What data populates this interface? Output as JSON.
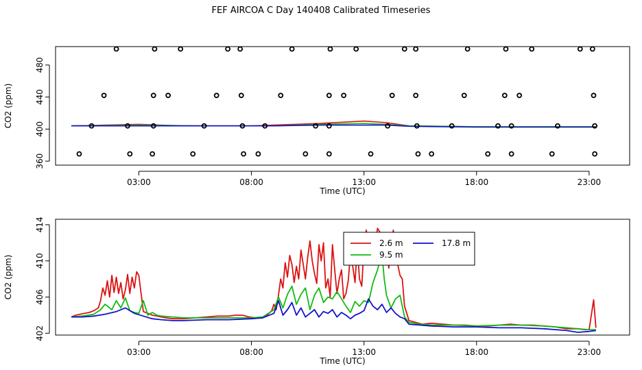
{
  "title": "FEF AIRCOA C  Day 140408  Calibrated Timeseries",
  "colors": {
    "h2_6": "#dd1111",
    "h9_5": "#11bb11",
    "h17_8": "#1111cc",
    "marker": "#000000"
  },
  "chart_data": [
    {
      "type": "scatter",
      "xlabel": "Time (UTC)",
      "ylabel": "CO2 (ppm)",
      "x_unit": "hours UTC",
      "xlim": [
        -0.7,
        24.8
      ],
      "ylim": [
        355,
        503
      ],
      "xticks": [
        {
          "label": "03:00",
          "value": 3
        },
        {
          "label": "08:00",
          "value": 8
        },
        {
          "label": "13:00",
          "value": 13
        },
        {
          "label": "18:00",
          "value": 18
        },
        {
          "label": "23:00",
          "value": 23
        }
      ],
      "yticks": [
        360,
        400,
        440,
        480
      ],
      "points": [
        {
          "x": 2.0,
          "y": 500
        },
        {
          "x": 3.7,
          "y": 500
        },
        {
          "x": 4.85,
          "y": 500
        },
        {
          "x": 6.95,
          "y": 500
        },
        {
          "x": 7.5,
          "y": 500
        },
        {
          "x": 9.8,
          "y": 500
        },
        {
          "x": 11.5,
          "y": 500
        },
        {
          "x": 12.65,
          "y": 500
        },
        {
          "x": 14.8,
          "y": 500
        },
        {
          "x": 15.3,
          "y": 500
        },
        {
          "x": 17.6,
          "y": 500
        },
        {
          "x": 19.3,
          "y": 500
        },
        {
          "x": 20.45,
          "y": 500
        },
        {
          "x": 22.6,
          "y": 500
        },
        {
          "x": 23.15,
          "y": 500
        },
        {
          "x": 1.45,
          "y": 442
        },
        {
          "x": 3.65,
          "y": 442
        },
        {
          "x": 4.3,
          "y": 442
        },
        {
          "x": 6.45,
          "y": 442
        },
        {
          "x": 7.55,
          "y": 442
        },
        {
          "x": 9.3,
          "y": 442
        },
        {
          "x": 11.45,
          "y": 442
        },
        {
          "x": 12.1,
          "y": 442
        },
        {
          "x": 14.25,
          "y": 442
        },
        {
          "x": 15.3,
          "y": 442
        },
        {
          "x": 17.45,
          "y": 442
        },
        {
          "x": 19.25,
          "y": 442
        },
        {
          "x": 19.9,
          "y": 442
        },
        {
          "x": 23.2,
          "y": 442
        },
        {
          "x": 0.9,
          "y": 404
        },
        {
          "x": 2.5,
          "y": 404
        },
        {
          "x": 3.65,
          "y": 404
        },
        {
          "x": 5.9,
          "y": 404
        },
        {
          "x": 7.6,
          "y": 404
        },
        {
          "x": 8.6,
          "y": 404
        },
        {
          "x": 10.85,
          "y": 404
        },
        {
          "x": 11.45,
          "y": 404
        },
        {
          "x": 14.05,
          "y": 404
        },
        {
          "x": 15.35,
          "y": 404
        },
        {
          "x": 16.9,
          "y": 404
        },
        {
          "x": 18.95,
          "y": 404
        },
        {
          "x": 19.55,
          "y": 404
        },
        {
          "x": 21.6,
          "y": 404
        },
        {
          "x": 23.25,
          "y": 404
        },
        {
          "x": 0.35,
          "y": 369
        },
        {
          "x": 2.6,
          "y": 369
        },
        {
          "x": 3.6,
          "y": 369
        },
        {
          "x": 5.4,
          "y": 369
        },
        {
          "x": 7.65,
          "y": 369
        },
        {
          "x": 8.3,
          "y": 369
        },
        {
          "x": 10.4,
          "y": 369
        },
        {
          "x": 11.45,
          "y": 369
        },
        {
          "x": 13.3,
          "y": 369
        },
        {
          "x": 15.4,
          "y": 369
        },
        {
          "x": 16.0,
          "y": 369
        },
        {
          "x": 18.5,
          "y": 369
        },
        {
          "x": 19.55,
          "y": 369
        },
        {
          "x": 21.35,
          "y": 369
        },
        {
          "x": 23.25,
          "y": 369
        }
      ],
      "series": [
        {
          "color": "#dd1111",
          "x": [
            0,
            3,
            5,
            8,
            9,
            11,
            13,
            14,
            15,
            18,
            20,
            22,
            23.3
          ],
          "y": [
            404,
            406,
            404,
            404,
            405,
            407,
            410,
            408,
            404,
            403,
            403,
            403,
            403
          ]
        },
        {
          "color": "#11bb11",
          "x": [
            0,
            3,
            6,
            9,
            11,
            13,
            14,
            15,
            18,
            23.3
          ],
          "y": [
            404,
            405,
            404,
            404,
            406,
            407,
            406,
            404,
            403,
            403
          ]
        },
        {
          "color": "#1111cc",
          "x": [
            0,
            3,
            6,
            9,
            11,
            13,
            14,
            15,
            18,
            23.3
          ],
          "y": [
            404,
            404,
            404,
            404,
            405,
            405,
            405,
            403.5,
            402.5,
            402.5
          ]
        }
      ]
    },
    {
      "type": "line",
      "xlabel": "Time (UTC)",
      "ylabel": "CO2 (ppm)",
      "x_unit": "hours UTC",
      "xlim": [
        -0.7,
        24.8
      ],
      "ylim": [
        401.8,
        414.6
      ],
      "xticks": [
        {
          "label": "03:00",
          "value": 3
        },
        {
          "label": "08:00",
          "value": 8
        },
        {
          "label": "13:00",
          "value": 13
        },
        {
          "label": "18:00",
          "value": 18
        },
        {
          "label": "23:00",
          "value": 23
        }
      ],
      "yticks": [
        402,
        406,
        410,
        414
      ],
      "legend": "top-center",
      "series": [
        {
          "name": "2.6 m",
          "color": "#dd1111",
          "x": [
            0.0,
            0.2,
            0.4,
            0.6,
            0.8,
            1.0,
            1.2,
            1.3,
            1.4,
            1.5,
            1.6,
            1.7,
            1.8,
            1.9,
            2.0,
            2.1,
            2.2,
            2.3,
            2.4,
            2.5,
            2.6,
            2.7,
            2.8,
            2.9,
            3.0,
            3.2,
            3.4,
            3.6,
            3.8,
            4.0,
            4.2,
            4.5,
            4.8,
            5.0,
            5.5,
            6.0,
            6.5,
            7.0,
            7.3,
            7.6,
            7.9,
            8.2,
            8.5,
            8.7,
            8.9,
            9.0,
            9.1,
            9.2,
            9.3,
            9.4,
            9.5,
            9.6,
            9.7,
            9.8,
            9.9,
            10.0,
            10.1,
            10.2,
            10.3,
            10.4,
            10.5,
            10.6,
            10.7,
            10.8,
            10.9,
            11.0,
            11.1,
            11.2,
            11.3,
            11.4,
            11.5,
            11.6,
            11.7,
            11.8,
            11.9,
            12.0,
            12.1,
            12.2,
            12.3,
            12.4,
            12.5,
            12.6,
            12.7,
            12.8,
            12.9,
            13.0,
            13.1,
            13.2,
            13.3,
            13.4,
            13.5,
            13.6,
            13.7,
            13.8,
            13.9,
            14.0,
            14.1,
            14.2,
            14.3,
            14.4,
            14.5,
            14.6,
            14.7,
            14.8,
            15.0,
            15.3,
            15.6,
            16.0,
            16.5,
            17.0,
            17.5,
            18.0,
            18.5,
            19.0,
            19.5,
            20.0,
            20.5,
            21.0,
            21.5,
            22.0,
            22.5,
            22.8,
            23.0,
            23.2,
            23.3
          ],
          "y": [
            403.8,
            404.0,
            404.1,
            404.2,
            404.3,
            404.5,
            404.8,
            405.6,
            407.0,
            406.2,
            407.8,
            406.0,
            408.4,
            406.5,
            408.2,
            406.4,
            407.6,
            405.8,
            406.8,
            408.5,
            406.4,
            408.2,
            407.0,
            408.8,
            408.4,
            404.4,
            404.2,
            404.0,
            403.9,
            403.8,
            403.7,
            403.6,
            403.6,
            403.6,
            403.7,
            403.8,
            403.9,
            403.9,
            404.0,
            404.0,
            403.8,
            403.7,
            403.7,
            404.0,
            404.5,
            405.2,
            404.6,
            406.2,
            408.0,
            407.0,
            409.8,
            408.2,
            410.6,
            409.6,
            407.6,
            409.4,
            408.0,
            411.2,
            409.6,
            408.0,
            410.4,
            412.2,
            410.0,
            408.6,
            407.5,
            411.8,
            410.0,
            412.0,
            407.0,
            408.0,
            406.0,
            411.8,
            409.0,
            406.4,
            408.0,
            409.0,
            405.8,
            406.4,
            407.8,
            410.8,
            409.4,
            407.6,
            411.6,
            408.0,
            407.2,
            411.4,
            413.4,
            411.6,
            413.0,
            412.8,
            411.8,
            413.6,
            413.2,
            412.2,
            410.8,
            412.4,
            409.2,
            411.2,
            413.4,
            411.4,
            409.6,
            408.4,
            408.0,
            405.0,
            403.4,
            403.2,
            403.0,
            403.1,
            403.0,
            402.9,
            402.9,
            402.8,
            402.8,
            402.9,
            403.0,
            402.9,
            402.9,
            402.8,
            402.7,
            402.5,
            402.5,
            402.4,
            402.4,
            405.7,
            402.6
          ]
        },
        {
          "name": "9.5 m",
          "color": "#11bb11",
          "x": [
            0.0,
            0.5,
            1.0,
            1.3,
            1.5,
            1.8,
            2.0,
            2.2,
            2.4,
            2.6,
            2.8,
            3.0,
            3.2,
            3.4,
            3.6,
            3.8,
            4.0,
            4.5,
            5.0,
            6.0,
            7.0,
            8.0,
            8.5,
            9.0,
            9.2,
            9.4,
            9.6,
            9.8,
            10.0,
            10.2,
            10.4,
            10.6,
            10.8,
            11.0,
            11.2,
            11.4,
            11.6,
            11.8,
            12.0,
            12.2,
            12.4,
            12.6,
            12.8,
            13.0,
            13.2,
            13.4,
            13.6,
            13.8,
            13.9,
            14.0,
            14.2,
            14.4,
            14.6,
            14.8,
            15.0,
            15.5,
            16.0,
            17.0,
            18.0,
            19.0,
            20.0,
            21.0,
            22.0,
            23.0,
            23.3
          ],
          "y": [
            403.8,
            403.9,
            404.1,
            404.6,
            405.2,
            404.6,
            405.6,
            404.8,
            405.9,
            404.5,
            404.3,
            404.2,
            405.6,
            404.0,
            404.3,
            404.0,
            403.9,
            403.8,
            403.7,
            403.7,
            403.7,
            403.7,
            403.8,
            404.6,
            406.0,
            404.8,
            406.3,
            407.2,
            405.2,
            406.3,
            407.0,
            404.6,
            406.2,
            407.0,
            405.4,
            406.0,
            405.8,
            406.6,
            405.8,
            405.0,
            404.3,
            405.5,
            405.0,
            405.6,
            405.4,
            407.6,
            409.0,
            410.8,
            408.0,
            406.2,
            404.8,
            405.8,
            406.2,
            403.8,
            403.2,
            403.0,
            402.9,
            402.9,
            402.8,
            402.9,
            402.9,
            402.8,
            402.6,
            402.4,
            402.4
          ]
        },
        {
          "name": "17.8 m",
          "color": "#1111cc",
          "x": [
            0.0,
            0.5,
            1.0,
            1.5,
            2.0,
            2.4,
            2.8,
            3.2,
            3.6,
            4.0,
            4.5,
            5.0,
            6.0,
            7.0,
            8.0,
            8.5,
            9.0,
            9.2,
            9.4,
            9.6,
            9.8,
            10.0,
            10.2,
            10.4,
            10.6,
            10.8,
            11.0,
            11.2,
            11.4,
            11.6,
            11.8,
            12.0,
            12.2,
            12.4,
            12.6,
            12.8,
            13.0,
            13.2,
            13.4,
            13.6,
            13.8,
            14.0,
            14.2,
            14.4,
            14.6,
            14.8,
            15.0,
            15.5,
            16.0,
            17.0,
            18.0,
            19.0,
            20.0,
            21.0,
            22.0,
            22.5,
            23.0,
            23.3
          ],
          "y": [
            403.8,
            403.8,
            403.9,
            404.1,
            404.4,
            404.8,
            404.2,
            403.9,
            403.6,
            403.5,
            403.4,
            403.4,
            403.5,
            403.5,
            403.6,
            403.7,
            404.2,
            405.6,
            404.0,
            404.6,
            405.4,
            404.0,
            404.8,
            403.8,
            404.2,
            404.6,
            403.8,
            404.4,
            404.2,
            404.6,
            403.8,
            404.3,
            404.0,
            403.6,
            404.0,
            404.2,
            404.5,
            405.8,
            405.0,
            404.6,
            405.2,
            404.3,
            404.8,
            404.2,
            403.8,
            403.6,
            403.0,
            402.9,
            402.8,
            402.7,
            402.7,
            402.6,
            402.6,
            402.5,
            402.3,
            402.1,
            402.2,
            402.3
          ]
        }
      ]
    }
  ]
}
